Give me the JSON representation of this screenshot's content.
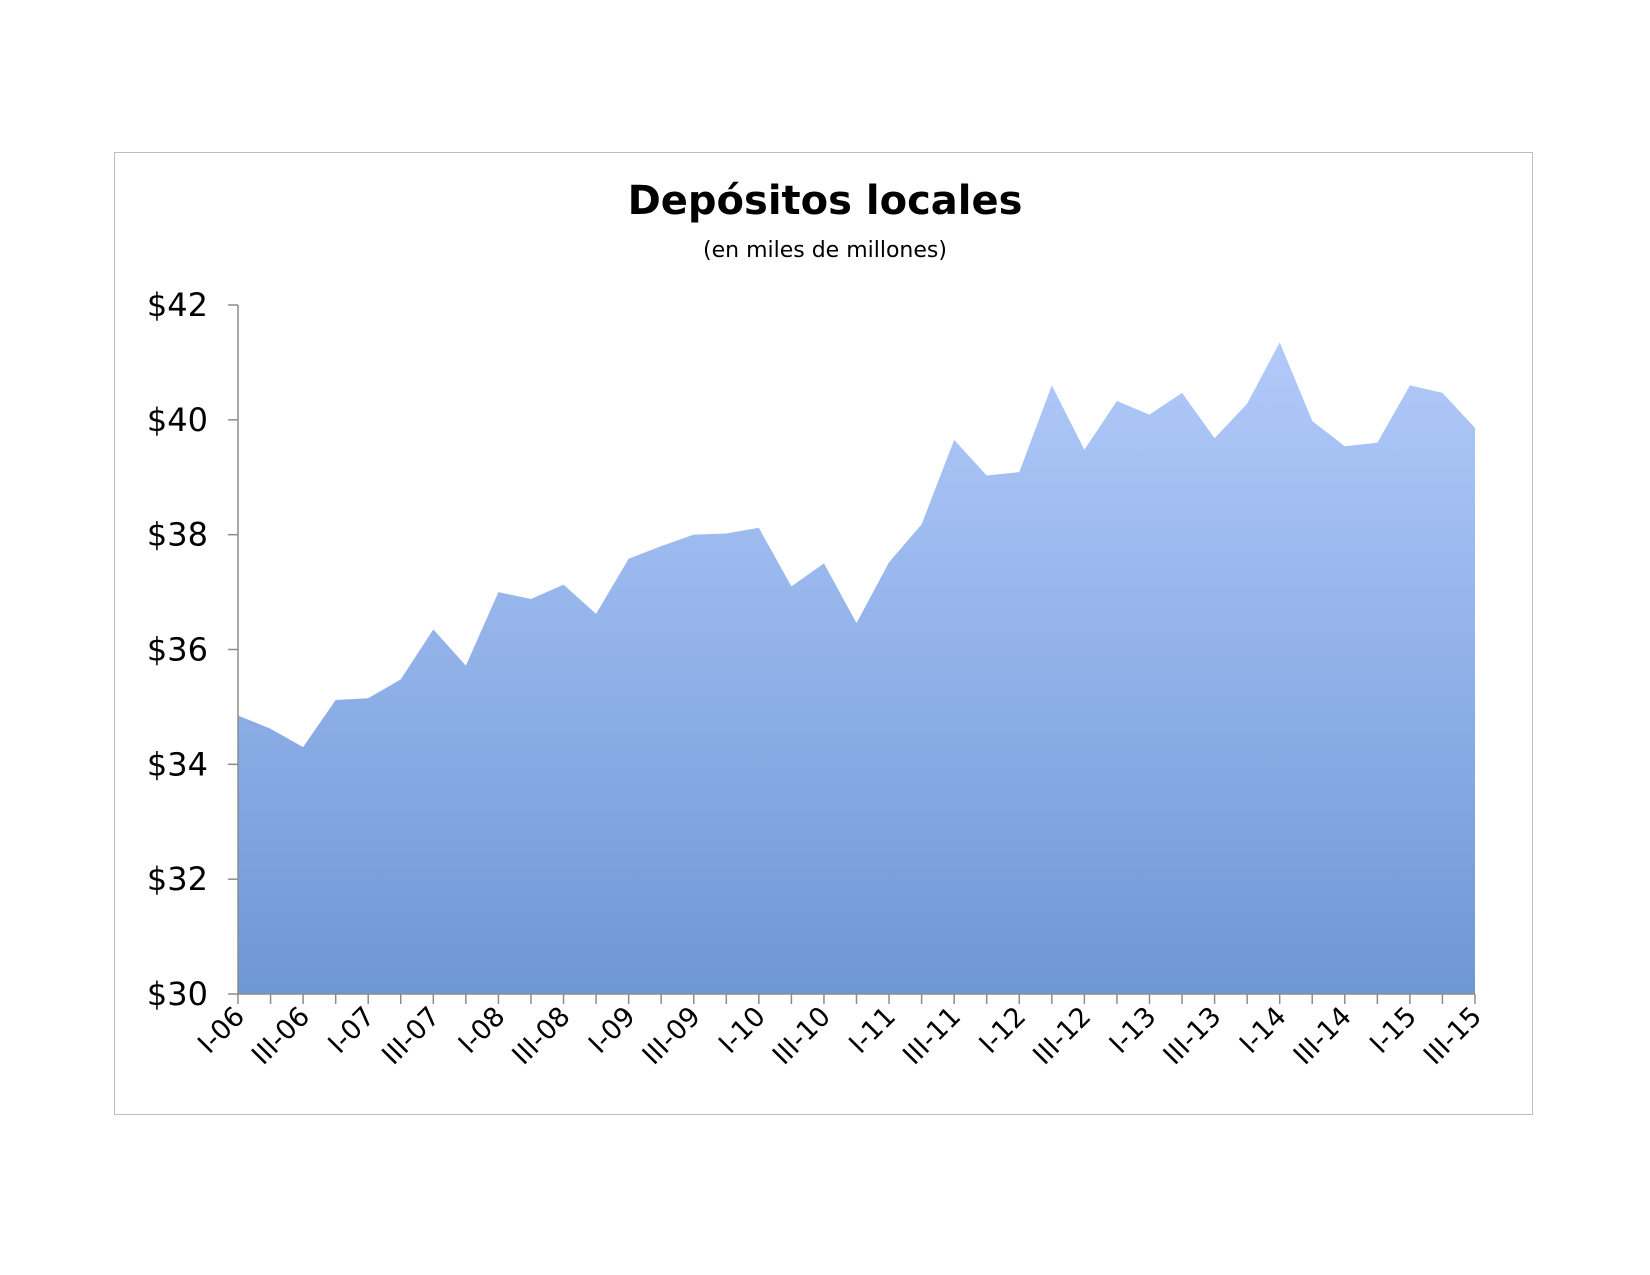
{
  "chart_data": {
    "type": "area",
    "title": "Depósitos locales",
    "subtitle": "(en miles de millones)",
    "xlabel": "",
    "ylabel": "",
    "ylim": [
      30,
      42
    ],
    "yticks": [
      30,
      32,
      34,
      36,
      38,
      40,
      42
    ],
    "ytick_prefix": "$",
    "grid": false,
    "legend": "none",
    "fill_top_color": "#b2cafa",
    "fill_bottom_color": "#6e97d6",
    "x": [
      "I-06",
      "II-06",
      "III-06",
      "IV-06",
      "I-07",
      "II-07",
      "III-07",
      "IV-07",
      "I-08",
      "II-08",
      "III-08",
      "IV-08",
      "I-09",
      "II-09",
      "III-09",
      "IV-09",
      "I-10",
      "II-10",
      "III-10",
      "IV-10",
      "I-11",
      "II-11",
      "III-11",
      "IV-11",
      "I-12",
      "II-12",
      "III-12",
      "IV-12",
      "I-13",
      "II-13",
      "III-13",
      "IV-13",
      "I-14",
      "II-14",
      "III-14",
      "IV-14",
      "I-15",
      "II-15",
      "III-15"
    ],
    "xtick_labels": [
      "I-06",
      "III-06",
      "I-07",
      "III-07",
      "I-08",
      "III-08",
      "I-09",
      "III-09",
      "I-10",
      "III-10",
      "I-11",
      "III-11",
      "I-12",
      "III-12",
      "I-13",
      "III-13",
      "I-14",
      "III-14",
      "I-15",
      "III-15"
    ],
    "series": [
      {
        "values": [
          34.85,
          34.62,
          34.3,
          35.12,
          35.15,
          35.48,
          36.35,
          35.72,
          37.0,
          36.88,
          37.13,
          36.62,
          37.58,
          37.8,
          38.0,
          38.02,
          38.12,
          37.1,
          37.5,
          36.46,
          37.52,
          38.18,
          39.65,
          39.03,
          39.09,
          40.6,
          39.48,
          40.33,
          40.09,
          40.47,
          39.68,
          40.28,
          41.35,
          39.98,
          39.54,
          39.6,
          40.6,
          40.47,
          39.86
        ]
      }
    ]
  }
}
